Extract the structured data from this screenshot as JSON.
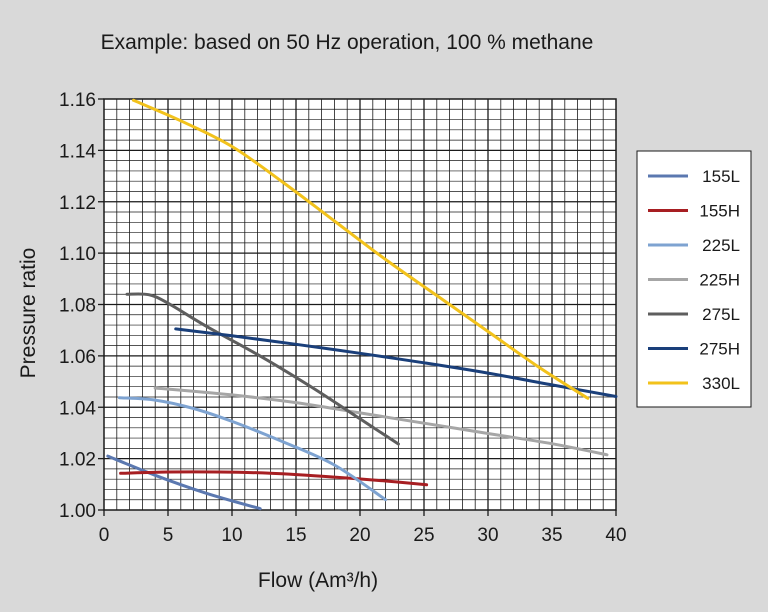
{
  "chart_data": {
    "type": "line",
    "title": "Example: based on 50 Hz operation, 100 % methane",
    "xlabel": "Flow (Am³/h)",
    "ylabel": "Pressure ratio",
    "xlim": [
      0,
      40
    ],
    "ylim": [
      1.0,
      1.16
    ],
    "x_ticks": [
      "0",
      "5",
      "10",
      "15",
      "20",
      "25",
      "30",
      "35",
      "40"
    ],
    "y_ticks": [
      "1.00",
      "1.02",
      "1.04",
      "1.06",
      "1.08",
      "1.10",
      "1.12",
      "1.14",
      "1.16"
    ],
    "x_major_step": 5,
    "x_minor_step": 1,
    "y_major_step": 0.02,
    "y_minor_step": 0.004,
    "grid": true,
    "legend_position": "right",
    "background": "#d9d9d9",
    "plot_background": "#ffffff",
    "series": [
      {
        "name": "155L",
        "color": "#5b78b0",
        "x": [
          0.3,
          4,
          8,
          12.2
        ],
        "y": [
          1.021,
          1.0135,
          1.0065,
          1.0005
        ]
      },
      {
        "name": "155H",
        "color": "#a71e22",
        "x": [
          1.3,
          5,
          9,
          13,
          18,
          22,
          25.2
        ],
        "y": [
          1.0143,
          1.0148,
          1.0148,
          1.0143,
          1.0128,
          1.0113,
          1.0098
        ]
      },
      {
        "name": "225L",
        "color": "#7ea3d1",
        "x": [
          1.2,
          4,
          7,
          10,
          14,
          18,
          22
        ],
        "y": [
          1.0437,
          1.0428,
          1.0395,
          1.0345,
          1.0265,
          1.0175,
          1.004
        ]
      },
      {
        "name": "225H",
        "color": "#a6a6a6",
        "x": [
          4,
          10,
          15,
          20,
          25,
          30,
          35,
          39.3
        ],
        "y": [
          1.0475,
          1.0448,
          1.0418,
          1.0378,
          1.0338,
          1.0298,
          1.0258,
          1.0215
        ]
      },
      {
        "name": "275L",
        "color": "#5e5e5e",
        "x": [
          1.8,
          3.5,
          5,
          8,
          12,
          16,
          20,
          23
        ],
        "y": [
          1.084,
          1.0838,
          1.0805,
          1.0715,
          1.0605,
          1.0485,
          1.0355,
          1.0257
        ]
      },
      {
        "name": "275H",
        "color": "#1a3f7a",
        "x": [
          5.6,
          10,
          15,
          20,
          25,
          30,
          35,
          40
        ],
        "y": [
          1.0705,
          1.0678,
          1.0645,
          1.061,
          1.0573,
          1.0533,
          1.0487,
          1.0442
        ]
      },
      {
        "name": "330L",
        "color": "#f2c21b",
        "x": [
          2.3,
          6,
          10,
          14,
          18,
          22,
          26,
          30,
          34,
          37.8
        ],
        "y": [
          1.1595,
          1.1515,
          1.1415,
          1.1275,
          1.1125,
          1.0975,
          1.0835,
          1.0695,
          1.0555,
          1.0435
        ]
      }
    ]
  }
}
